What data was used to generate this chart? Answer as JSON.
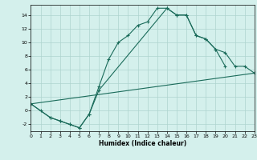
{
  "xlabel": "Humidex (Indice chaleur)",
  "xlim": [
    0,
    23
  ],
  "ylim": [
    -3,
    15.5
  ],
  "xticks": [
    0,
    1,
    2,
    3,
    4,
    5,
    6,
    7,
    8,
    9,
    10,
    11,
    12,
    13,
    14,
    15,
    16,
    17,
    18,
    19,
    20,
    21,
    22,
    23
  ],
  "yticks": [
    -2,
    0,
    2,
    4,
    6,
    8,
    10,
    12,
    14
  ],
  "bg_color": "#d4f0ec",
  "grid_color": "#aed4ce",
  "line_color": "#1a6b5a",
  "line1_x": [
    0,
    1,
    2,
    3,
    4,
    5,
    6,
    7,
    8,
    9,
    10,
    11,
    12,
    13,
    14,
    15,
    16,
    17,
    18,
    19,
    20
  ],
  "line1_y": [
    1,
    0,
    -1,
    -1.5,
    -2,
    -2.5,
    -0.5,
    3.5,
    7.5,
    10,
    11,
    12.5,
    13,
    15,
    15,
    14,
    14,
    11,
    10.5,
    9,
    6.5
  ],
  "line2_x": [
    0,
    2,
    3,
    4,
    5,
    6,
    7,
    14,
    15,
    16,
    17,
    18,
    19,
    20,
    21,
    22,
    23
  ],
  "line2_y": [
    1,
    -1,
    -1.5,
    -2,
    -2.5,
    -0.5,
    3.0,
    15,
    14,
    14,
    11,
    10.5,
    9,
    8.5,
    6.5,
    6.5,
    5.5
  ],
  "line3_x": [
    0,
    23
  ],
  "line3_y": [
    1,
    5.5
  ]
}
